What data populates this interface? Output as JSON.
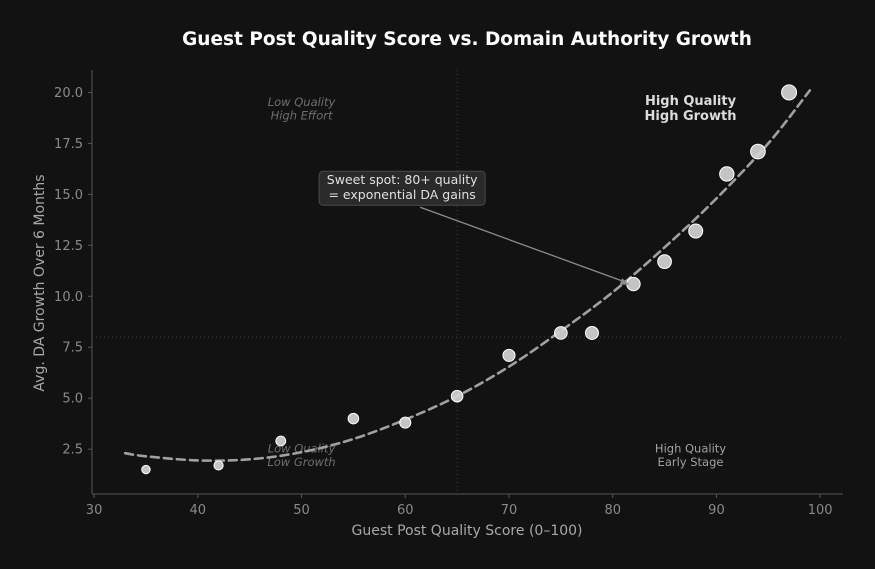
{
  "chart_data": {
    "type": "scatter",
    "title": "Guest Post Quality Score vs. Domain Authority Growth",
    "xlabel": "Guest Post Quality Score (0–100)",
    "ylabel": "Avg. DA Growth Over 6 Months",
    "xlim": [
      29.8,
      102.2
    ],
    "ylim": [
      0.3,
      21.1
    ],
    "x_ticks": [
      30,
      40,
      50,
      60,
      70,
      80,
      90,
      100
    ],
    "y_ticks": [
      2.5,
      5.0,
      7.5,
      10.0,
      12.5,
      15.0,
      17.5,
      20.0
    ],
    "x_tick_labels": [
      "30",
      "40",
      "50",
      "60",
      "70",
      "80",
      "90",
      "100"
    ],
    "y_tick_labels": [
      "2.5",
      "5.0",
      "7.5",
      "10.0",
      "12.5",
      "15.0",
      "17.5",
      "20.0"
    ],
    "grid": false,
    "reference_lines": {
      "x": 65,
      "y": 8.0
    },
    "points": [
      {
        "x": 35,
        "y": 1.5
      },
      {
        "x": 42,
        "y": 1.7
      },
      {
        "x": 48,
        "y": 2.9
      },
      {
        "x": 55,
        "y": 4.0
      },
      {
        "x": 60,
        "y": 3.8
      },
      {
        "x": 65,
        "y": 5.1
      },
      {
        "x": 70,
        "y": 7.1
      },
      {
        "x": 75,
        "y": 8.2
      },
      {
        "x": 78,
        "y": 8.2
      },
      {
        "x": 82,
        "y": 10.6
      },
      {
        "x": 85,
        "y": 11.7
      },
      {
        "x": 88,
        "y": 13.2
      },
      {
        "x": 91,
        "y": 16.0
      },
      {
        "x": 94,
        "y": 17.1
      },
      {
        "x": 97,
        "y": 20.0
      }
    ],
    "trend": {
      "style": "dashed",
      "points": [
        {
          "x": 33,
          "y": 2.3
        },
        {
          "x": 35,
          "y": 2.15
        },
        {
          "x": 40,
          "y": 1.95
        },
        {
          "x": 45,
          "y": 2.0
        },
        {
          "x": 50,
          "y": 2.35
        },
        {
          "x": 55,
          "y": 3.0
        },
        {
          "x": 60,
          "y": 3.95
        },
        {
          "x": 65,
          "y": 5.1
        },
        {
          "x": 70,
          "y": 6.55
        },
        {
          "x": 75,
          "y": 8.3
        },
        {
          "x": 80,
          "y": 10.2
        },
        {
          "x": 85,
          "y": 12.4
        },
        {
          "x": 90,
          "y": 14.8
        },
        {
          "x": 95,
          "y": 17.5
        },
        {
          "x": 99,
          "y": 20.1
        }
      ]
    },
    "quadrant_labels": [
      {
        "id": "top-left",
        "lines": [
          "Low Quality",
          "High Effort"
        ],
        "x": 50,
        "y": 19.2,
        "style": "italic-dim"
      },
      {
        "id": "top-right",
        "lines": [
          "High Quality",
          "High Growth"
        ],
        "x": 87.5,
        "y": 19.2,
        "style": "bold-bright"
      },
      {
        "id": "bottom-left",
        "lines": [
          "Low Quality",
          "Low Growth"
        ],
        "x": 50,
        "y": 2.2,
        "style": "italic-dim"
      },
      {
        "id": "bottom-right",
        "lines": [
          "High Quality",
          "Early Stage"
        ],
        "x": 87.5,
        "y": 2.2,
        "style": "normal-mid"
      }
    ],
    "annotation": {
      "lines": [
        "Sweet spot: 80+ quality",
        "= exponential DA gains"
      ],
      "text_x": 59.7,
      "text_y": 15.3,
      "arrow_to": {
        "x": 82,
        "y": 10.5
      }
    },
    "colors": {
      "background": "#121212",
      "axes": "#555555",
      "tick_text": "#8a8a8a",
      "label_text": "#a8a8a8",
      "title": "#ffffff",
      "point_fill": "#d4d4d4",
      "point_stroke": "#ffffff",
      "trend_line": "#a0a0a0",
      "reference_line": "#3c3c3c",
      "annotation_box": "#2a2a2a",
      "annotation_text": "#e0e0e0",
      "arrow": "#8c8c8c"
    }
  }
}
